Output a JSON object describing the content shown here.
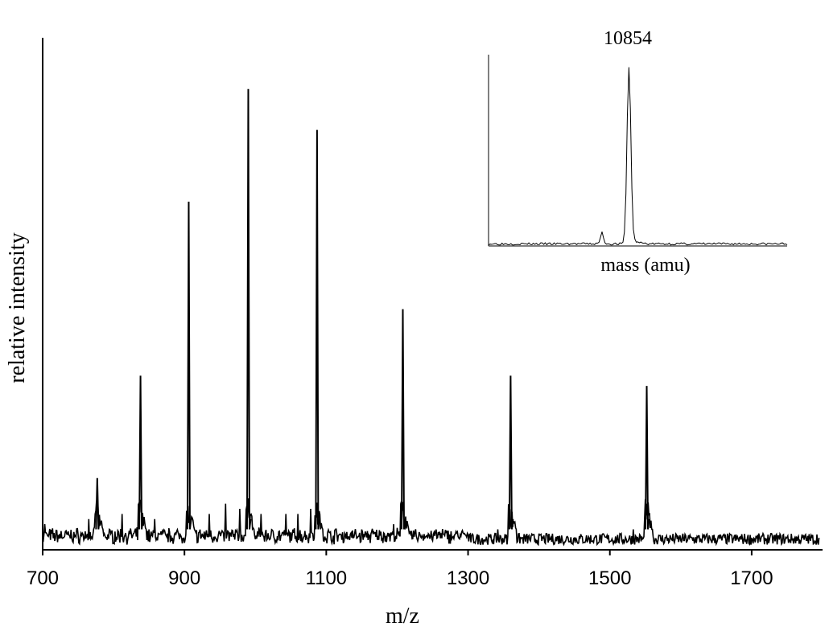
{
  "chart_data": [
    {
      "type": "line",
      "name": "main",
      "xlabel": "m/z",
      "ylabel": "relative intensity",
      "xlim": [
        700,
        1800
      ],
      "ylim": [
        0,
        100
      ],
      "x_ticks": [
        700,
        900,
        1100,
        1300,
        1500,
        1700
      ],
      "x_tick_labels": [
        "700",
        "900",
        "1100",
        "1300",
        "1500",
        "1700"
      ],
      "grid": false,
      "peaks": [
        {
          "x": 777,
          "y": 14
        },
        {
          "x": 838,
          "y": 34
        },
        {
          "x": 906,
          "y": 68
        },
        {
          "x": 990,
          "y": 90
        },
        {
          "x": 1087,
          "y": 82
        },
        {
          "x": 1208,
          "y": 47
        },
        {
          "x": 1360,
          "y": 34
        },
        {
          "x": 1552,
          "y": 32
        }
      ],
      "baseline_noise": [
        {
          "x": 703,
          "y": 5
        },
        {
          "x": 765,
          "y": 6
        },
        {
          "x": 812,
          "y": 7
        },
        {
          "x": 858,
          "y": 6
        },
        {
          "x": 935,
          "y": 7
        },
        {
          "x": 958,
          "y": 9
        },
        {
          "x": 978,
          "y": 8
        },
        {
          "x": 1008,
          "y": 7
        },
        {
          "x": 1043,
          "y": 7
        },
        {
          "x": 1060,
          "y": 7
        },
        {
          "x": 1078,
          "y": 8
        },
        {
          "x": 1195,
          "y": 5
        },
        {
          "x": 1300,
          "y": 3
        },
        {
          "x": 1342,
          "y": 4
        },
        {
          "x": 1533,
          "y": 4
        },
        {
          "x": 1792,
          "y": 3
        }
      ]
    },
    {
      "type": "line",
      "name": "inset",
      "xlabel": "mass (amu)",
      "annotation": "10854",
      "xlim": [
        0,
        100
      ],
      "ylim": [
        0,
        100
      ],
      "peaks": [
        {
          "x": 47,
          "y": 92
        },
        {
          "x": 38,
          "y": 6
        }
      ]
    }
  ]
}
